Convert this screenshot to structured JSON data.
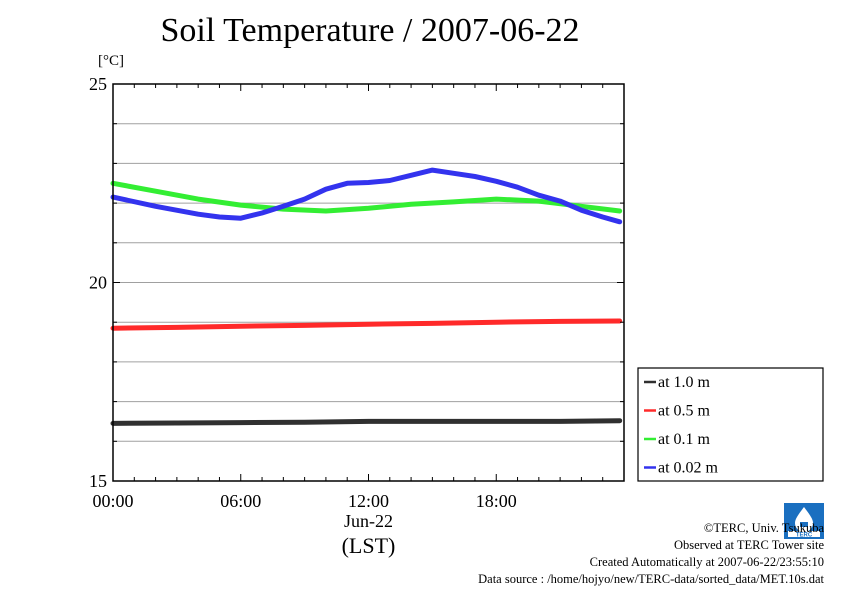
{
  "title": "Soil Temperature / 2007-06-22",
  "unit_label": "[°C]",
  "footer": {
    "copyright": "©TERC, Univ. Tsukuba",
    "site": "Observed at TERC Tower site",
    "created": "Created Automatically at 2007-06-22/23:55:10",
    "source": "Data source : /home/hojyo/new/TERC-data/sorted_data/MET.10s.dat"
  },
  "logo_text": "TERC",
  "colors": {
    "at_1_0": "#303030",
    "at_0_5": "#ff2a2a",
    "at_0_1": "#33ee33",
    "at_0_02": "#3333ee",
    "grid": "#a0a0a0"
  },
  "chart_data": {
    "type": "line",
    "title": "Soil Temperature / 2007-06-22",
    "ylabel": "[°C]",
    "xlabel": "(LST)",
    "date_label": "Jun-22",
    "ylim": [
      15,
      25
    ],
    "xlim": [
      0,
      24
    ],
    "xticks": [
      {
        "value": 0,
        "label": "00:00"
      },
      {
        "value": 6,
        "label": "06:00"
      },
      {
        "value": 12,
        "label": "12:00"
      },
      {
        "value": 18,
        "label": "18:00"
      }
    ],
    "yticks": [
      {
        "value": 15,
        "label": "15"
      },
      {
        "value": 20,
        "label": "20"
      },
      {
        "value": 25,
        "label": "25"
      }
    ],
    "grid": true,
    "legend_position": "right",
    "series": [
      {
        "name": "at 1.0 m",
        "color": "#303030",
        "x": [
          0,
          3,
          6,
          9,
          12,
          15,
          18,
          21,
          23.8
        ],
        "y": [
          16.45,
          16.46,
          16.47,
          16.48,
          16.5,
          16.5,
          16.5,
          16.5,
          16.52
        ]
      },
      {
        "name": "at 0.5 m",
        "color": "#ff2a2a",
        "x": [
          0,
          3,
          6,
          9,
          12,
          15,
          18,
          21,
          23.8
        ],
        "y": [
          18.85,
          18.87,
          18.9,
          18.92,
          18.95,
          18.97,
          19.0,
          19.02,
          19.03
        ]
      },
      {
        "name": "at 0.1 m",
        "color": "#33ee33",
        "x": [
          0,
          2,
          4,
          6,
          8,
          10,
          12,
          14,
          16,
          18,
          20,
          22,
          23.8
        ],
        "y": [
          22.5,
          22.3,
          22.1,
          21.95,
          21.85,
          21.8,
          21.87,
          21.97,
          22.03,
          22.1,
          22.05,
          21.92,
          21.8
        ]
      },
      {
        "name": "at 0.02 m",
        "color": "#3333ee",
        "x": [
          0,
          2,
          4,
          5,
          6,
          7,
          8,
          9,
          10,
          11,
          12,
          13,
          14,
          15,
          16,
          17,
          18,
          19,
          20,
          21,
          22,
          23,
          23.8
        ],
        "y": [
          22.15,
          21.92,
          21.72,
          21.65,
          21.62,
          21.75,
          21.92,
          22.1,
          22.35,
          22.5,
          22.52,
          22.57,
          22.7,
          22.83,
          22.75,
          22.67,
          22.55,
          22.4,
          22.2,
          22.05,
          21.82,
          21.65,
          21.53
        ]
      }
    ]
  }
}
